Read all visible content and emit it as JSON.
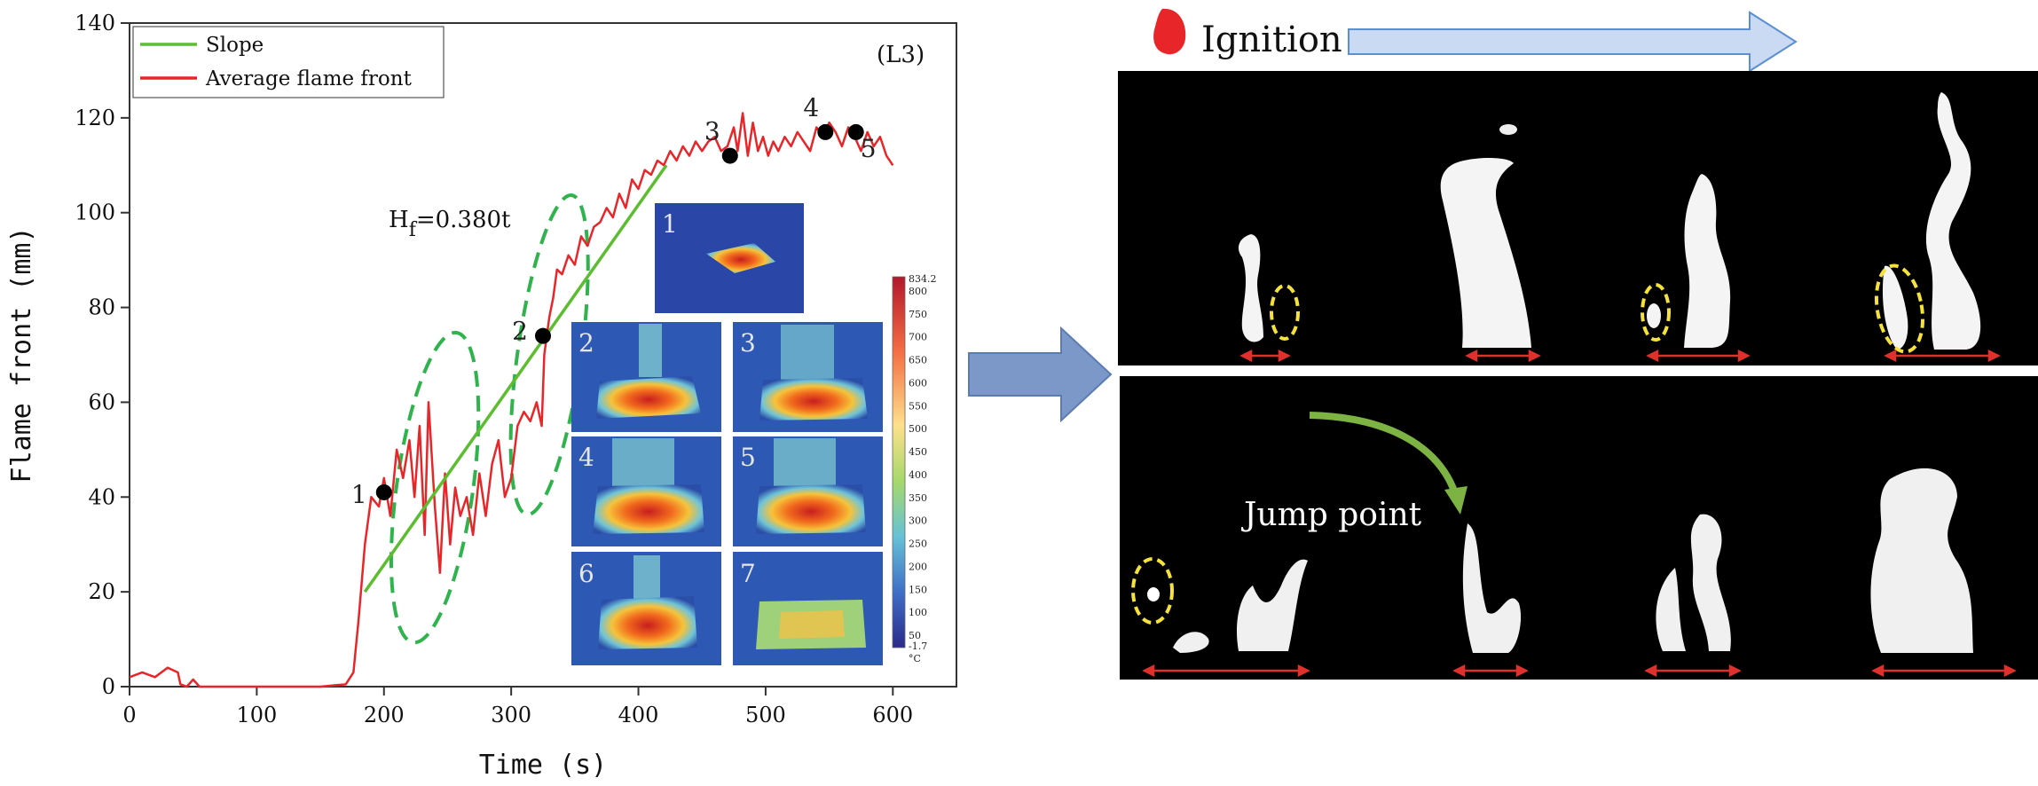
{
  "chart_data": {
    "type": "line",
    "panel_tag": "(L3)",
    "xlabel": "Time (s)",
    "ylabel": "Flame front (mm)",
    "xlim": [
      0,
      650
    ],
    "ylim": [
      0,
      140
    ],
    "x_ticks": [
      0,
      100,
      200,
      300,
      400,
      500,
      600
    ],
    "y_ticks": [
      0,
      20,
      40,
      60,
      80,
      100,
      120,
      140
    ],
    "legend": {
      "placement": "top-left",
      "entries": [
        "Slope",
        "Average flame front"
      ]
    },
    "equation": {
      "text": "H",
      "sub": "f",
      "rest": "=0.380t"
    },
    "colors": {
      "slope": "#5bbd2f",
      "flame_front": "#e8262a",
      "ellipse": "#2fb34d",
      "points": "#000000"
    },
    "series": [
      {
        "name": "Average flame front",
        "points": [
          [
            0,
            2
          ],
          [
            10,
            3
          ],
          [
            20,
            2
          ],
          [
            30,
            4
          ],
          [
            38,
            3
          ],
          [
            40,
            0.5
          ],
          [
            45,
            0
          ],
          [
            50,
            1.5
          ],
          [
            55,
            0
          ],
          [
            60,
            0
          ],
          [
            100,
            0
          ],
          [
            150,
            0
          ],
          [
            170,
            0.5
          ],
          [
            176,
            3
          ],
          [
            180,
            14
          ],
          [
            185,
            30
          ],
          [
            190,
            40
          ],
          [
            196,
            38
          ],
          [
            200,
            44
          ],
          [
            205,
            36
          ],
          [
            210,
            50
          ],
          [
            215,
            44
          ],
          [
            220,
            52
          ],
          [
            224,
            40
          ],
          [
            228,
            55
          ],
          [
            232,
            32
          ],
          [
            235,
            60
          ],
          [
            240,
            38
          ],
          [
            244,
            24
          ],
          [
            248,
            45
          ],
          [
            252,
            30
          ],
          [
            256,
            42
          ],
          [
            260,
            36
          ],
          [
            265,
            40
          ],
          [
            270,
            32
          ],
          [
            275,
            45
          ],
          [
            280,
            36
          ],
          [
            285,
            47
          ],
          [
            290,
            52
          ],
          [
            295,
            40
          ],
          [
            300,
            44
          ],
          [
            305,
            55
          ],
          [
            310,
            58
          ],
          [
            315,
            56
          ],
          [
            320,
            60
          ],
          [
            324,
            55
          ],
          [
            326,
            70
          ],
          [
            330,
            78
          ],
          [
            333,
            82
          ],
          [
            336,
            88
          ],
          [
            340,
            87
          ],
          [
            345,
            91
          ],
          [
            350,
            89
          ],
          [
            355,
            95
          ],
          [
            360,
            93
          ],
          [
            365,
            97
          ],
          [
            370,
            98
          ],
          [
            375,
            101
          ],
          [
            380,
            99
          ],
          [
            385,
            104
          ],
          [
            390,
            101
          ],
          [
            395,
            107
          ],
          [
            400,
            105
          ],
          [
            405,
            109
          ],
          [
            410,
            108
          ],
          [
            415,
            111
          ],
          [
            420,
            110
          ],
          [
            425,
            113
          ],
          [
            430,
            111
          ],
          [
            435,
            114
          ],
          [
            440,
            112
          ],
          [
            445,
            115
          ],
          [
            450,
            113
          ],
          [
            455,
            115
          ],
          [
            460,
            116
          ],
          [
            465,
            113
          ],
          [
            470,
            114
          ],
          [
            475,
            118
          ],
          [
            478,
            113
          ],
          [
            482,
            121
          ],
          [
            486,
            112
          ],
          [
            490,
            119
          ],
          [
            494,
            113
          ],
          [
            498,
            116
          ],
          [
            502,
            112
          ],
          [
            506,
            115
          ],
          [
            510,
            113
          ],
          [
            515,
            116
          ],
          [
            520,
            114
          ],
          [
            525,
            117
          ],
          [
            530,
            115
          ],
          [
            535,
            113
          ],
          [
            540,
            118
          ],
          [
            545,
            116
          ],
          [
            550,
            119
          ],
          [
            555,
            117
          ],
          [
            560,
            114
          ],
          [
            565,
            118
          ],
          [
            570,
            116
          ],
          [
            575,
            113
          ],
          [
            580,
            117
          ],
          [
            585,
            114
          ],
          [
            590,
            116
          ],
          [
            595,
            112
          ],
          [
            600,
            110
          ]
        ]
      },
      {
        "name": "Slope",
        "points": [
          [
            185,
            20
          ],
          [
            422,
            110
          ]
        ]
      }
    ],
    "marked_points": [
      {
        "label": "1",
        "x": 200,
        "y": 41
      },
      {
        "label": "2",
        "x": 325,
        "y": 74
      },
      {
        "label": "3",
        "x": 472,
        "y": 112
      },
      {
        "label": "4",
        "x": 547,
        "y": 117
      },
      {
        "label": "5",
        "x": 571,
        "y": 117
      }
    ],
    "ellipses": [
      {
        "cx": 240,
        "cy": 42,
        "rx": 30,
        "ry": 33
      },
      {
        "cx": 330,
        "cy": 70,
        "rx": 25,
        "ry": 34
      }
    ]
  },
  "thermal_inset": {
    "panel_labels": [
      "1",
      "2",
      "3",
      "4",
      "5",
      "6",
      "7"
    ],
    "colorbar": {
      "max_label": "834.2",
      "ticks": [
        "800",
        "750",
        "700",
        "650",
        "600",
        "550",
        "500",
        "450",
        "400",
        "350",
        "300",
        "250",
        "200",
        "150",
        "100",
        "50"
      ],
      "min_label": "-1.7",
      "unit": "°C"
    }
  },
  "photo_panel": {
    "ignition_label": "Ignition",
    "jump_label": "Jump point",
    "colors": {
      "ignition_icon": "#e8262a",
      "arrow_fill": "#c9daf2",
      "arrow_stroke": "#5b8fd0",
      "red_arrow": "#e0302c",
      "yellow_circle": "#f5e23a",
      "green_arrow": "#7cb342",
      "big_arrow": "#7b98c9"
    }
  }
}
